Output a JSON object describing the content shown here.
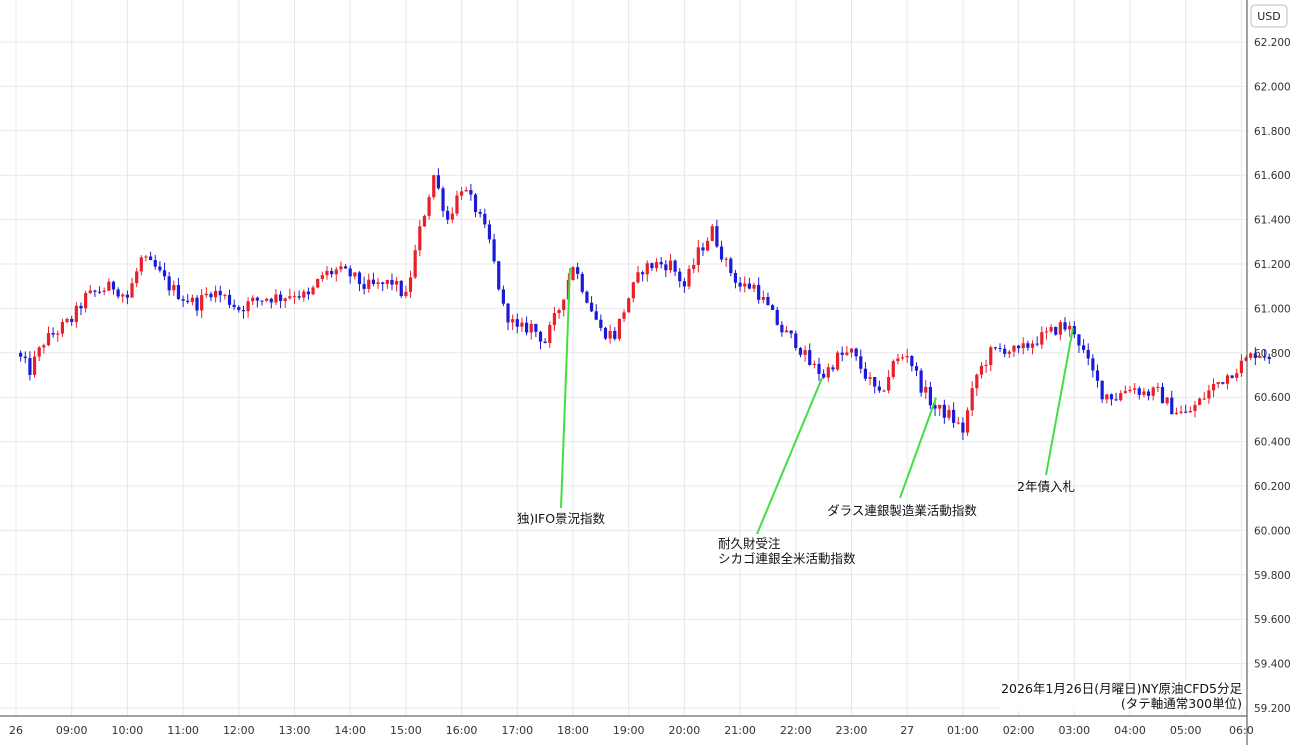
{
  "chart_data": {
    "type": "candlestick",
    "currency_label": "USD",
    "y_ticks": [
      "62.200",
      "62.000",
      "61.800",
      "61.600",
      "61.400",
      "61.200",
      "61.000",
      "60.800",
      "60.600",
      "60.400",
      "60.200",
      "60.000",
      "59.800",
      "59.600",
      "59.400",
      "59.200"
    ],
    "ylim": [
      59.2,
      62.2
    ],
    "x_ticks": [
      "26",
      "09:00",
      "10:00",
      "11:00",
      "12:00",
      "13:00",
      "14:00",
      "15:00",
      "16:00",
      "17:00",
      "18:00",
      "19:00",
      "20:00",
      "21:00",
      "22:00",
      "23:00",
      "27",
      "01:00",
      "02:00",
      "03:00",
      "04:00",
      "05:00",
      "06:0"
    ],
    "grid": true,
    "up_color": "#e8202a",
    "down_color": "#1a1ad8",
    "annotation_line_color": "#44dd44",
    "caption": [
      "2026年1月26日(月曜日)NY原油CFD5分足",
      "(タテ軸通常300単位)"
    ],
    "annotations": [
      {
        "lines": [
          "独)IFO景況指数"
        ],
        "time": "18:00"
      },
      {
        "lines": [
          "耐久財受注",
          "シカゴ連銀全米活動指数"
        ],
        "time": "22:30"
      },
      {
        "lines": [
          "ダラス連銀製造業活動指数"
        ],
        "time": "00:30"
      },
      {
        "lines": [
          "2年債入札"
        ],
        "time": "03:00"
      }
    ],
    "price_path": [
      [
        "08:00",
        60.8
      ],
      [
        "08:15",
        60.72
      ],
      [
        "08:30",
        60.85
      ],
      [
        "08:45",
        60.9
      ],
      [
        "09:00",
        60.95
      ],
      [
        "09:15",
        61.05
      ],
      [
        "09:30",
        61.08
      ],
      [
        "09:45",
        61.1
      ],
      [
        "10:00",
        61.05
      ],
      [
        "10:15",
        61.22
      ],
      [
        "10:30",
        61.18
      ],
      [
        "10:45",
        61.1
      ],
      [
        "11:00",
        61.05
      ],
      [
        "11:15",
        61.02
      ],
      [
        "11:30",
        61.08
      ],
      [
        "11:45",
        61.05
      ],
      [
        "12:00",
        61.0
      ],
      [
        "12:15",
        61.03
      ],
      [
        "12:30",
        61.05
      ],
      [
        "12:45",
        61.05
      ],
      [
        "13:00",
        61.07
      ],
      [
        "13:15",
        61.05
      ],
      [
        "13:30",
        61.15
      ],
      [
        "13:45",
        61.17
      ],
      [
        "14:00",
        61.15
      ],
      [
        "14:15",
        61.1
      ],
      [
        "14:30",
        61.1
      ],
      [
        "14:45",
        61.12
      ],
      [
        "15:00",
        61.05
      ],
      [
        "15:15",
        61.35
      ],
      [
        "15:30",
        61.6
      ],
      [
        "15:45",
        61.4
      ],
      [
        "16:00",
        61.55
      ],
      [
        "16:15",
        61.45
      ],
      [
        "16:30",
        61.3
      ],
      [
        "16:45",
        61.0
      ],
      [
        "17:00",
        60.9
      ],
      [
        "17:15",
        60.92
      ],
      [
        "17:30",
        60.85
      ],
      [
        "17:45",
        61.0
      ],
      [
        "18:00",
        61.2
      ],
      [
        "18:15",
        61.05
      ],
      [
        "18:30",
        60.9
      ],
      [
        "18:45",
        60.88
      ],
      [
        "19:00",
        61.05
      ],
      [
        "19:15",
        61.18
      ],
      [
        "19:30",
        61.2
      ],
      [
        "19:45",
        61.2
      ],
      [
        "20:00",
        61.1
      ],
      [
        "20:15",
        61.25
      ],
      [
        "20:30",
        61.35
      ],
      [
        "20:45",
        61.2
      ],
      [
        "21:00",
        61.1
      ],
      [
        "21:15",
        61.1
      ],
      [
        "21:30",
        61.0
      ],
      [
        "21:45",
        60.9
      ],
      [
        "22:00",
        60.85
      ],
      [
        "22:15",
        60.75
      ],
      [
        "22:30",
        60.7
      ],
      [
        "22:45",
        60.78
      ],
      [
        "23:00",
        60.8
      ],
      [
        "23:15",
        60.7
      ],
      [
        "23:30",
        60.6
      ],
      [
        "23:45",
        60.75
      ],
      [
        "24:00",
        60.8
      ],
      [
        "24:15",
        60.65
      ],
      [
        "24:30",
        60.55
      ],
      [
        "24:45",
        60.52
      ],
      [
        "25:00",
        60.45
      ],
      [
        "25:15",
        60.7
      ],
      [
        "25:30",
        60.8
      ],
      [
        "25:45",
        60.82
      ],
      [
        "26:00",
        60.8
      ],
      [
        "26:15",
        60.85
      ],
      [
        "26:30",
        60.88
      ],
      [
        "26:45",
        60.92
      ],
      [
        "27:00",
        60.9
      ],
      [
        "27:15",
        60.75
      ],
      [
        "27:30",
        60.62
      ],
      [
        "27:45",
        60.6
      ],
      [
        "28:00",
        60.65
      ],
      [
        "28:15",
        60.62
      ],
      [
        "28:30",
        60.62
      ],
      [
        "28:45",
        60.55
      ],
      [
        "29:00",
        60.52
      ],
      [
        "29:15",
        60.58
      ],
      [
        "29:30",
        60.65
      ],
      [
        "29:45",
        60.7
      ],
      [
        "30:00",
        60.75
      ],
      [
        "30:15",
        60.8
      ],
      [
        "30:30",
        60.79
      ]
    ]
  }
}
